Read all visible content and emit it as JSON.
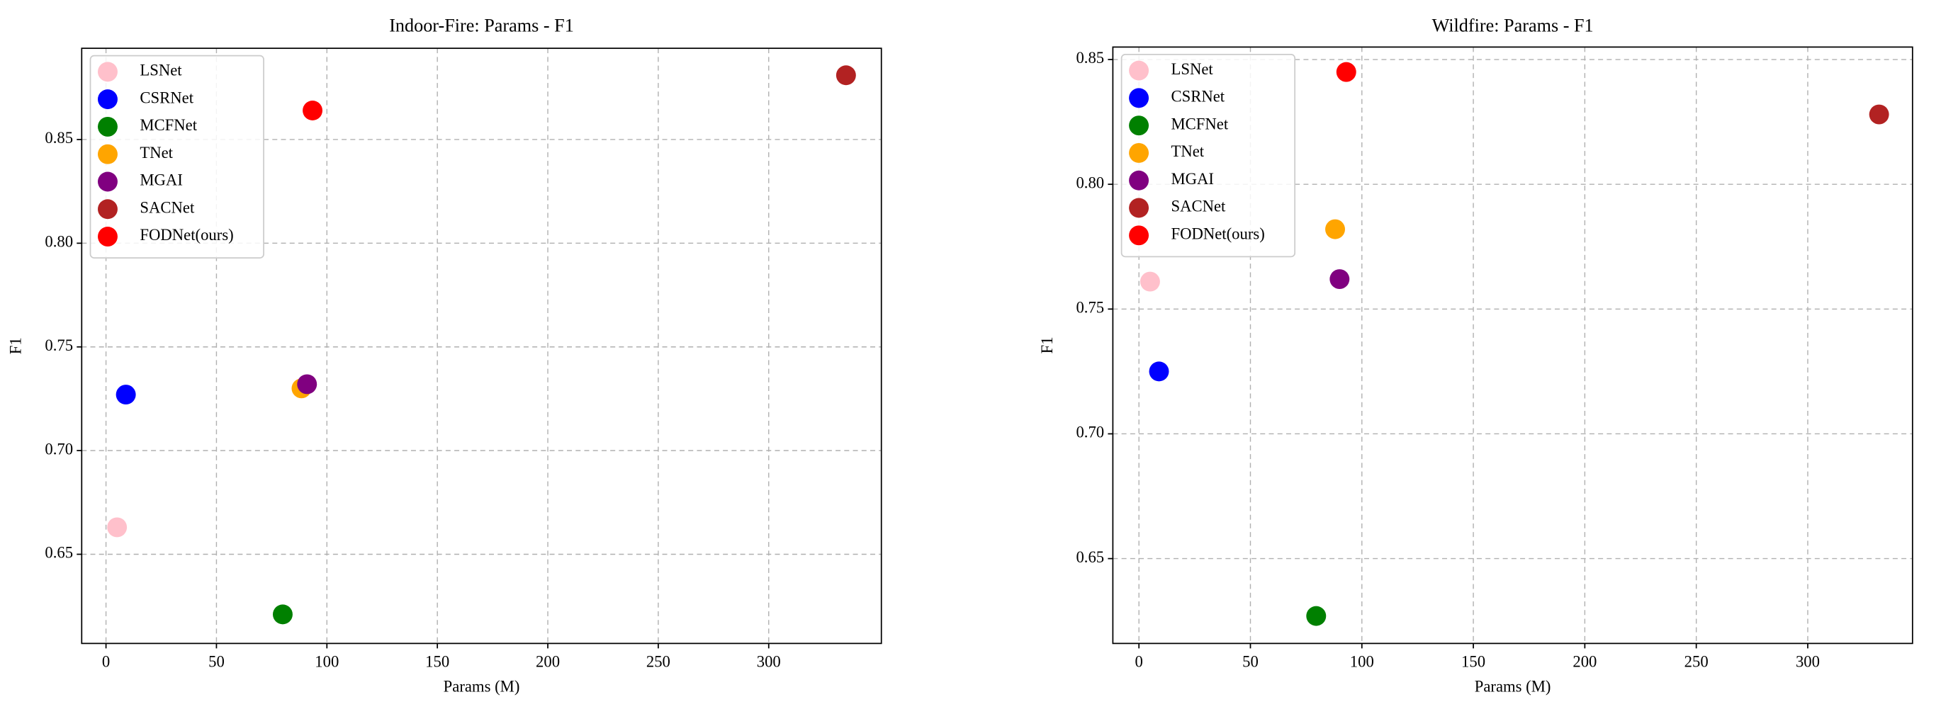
{
  "chart_data": [
    {
      "type": "scatter",
      "title": "Indoor-Fire: Params - F1",
      "x_label": "Params (M)",
      "y_label": "F1",
      "xlim": [
        -11,
        351
      ],
      "ylim": [
        0.607,
        0.894
      ],
      "xticks": [
        0,
        50,
        100,
        150,
        200,
        250,
        300
      ],
      "yticks": [
        0.65,
        {
          "value": 0.7,
          "label": "0.70"
        },
        0.75,
        {
          "value": 0.8,
          "label": "0.80"
        },
        0.85
      ],
      "grid": true,
      "legend": "upper left",
      "series": [
        {
          "name": "LSNet",
          "color": "#ffc0cb",
          "x": [
            5
          ],
          "values": [
            0.663
          ]
        },
        {
          "name": "CSRNet",
          "color": "#0000ff",
          "x": [
            9
          ],
          "values": [
            0.727
          ]
        },
        {
          "name": "MCFNet",
          "color": "#008000",
          "x": [
            80
          ],
          "values": [
            0.621
          ]
        },
        {
          "name": "TNet",
          "color": "#ffa500",
          "x": [
            88.5
          ],
          "values": [
            0.73
          ]
        },
        {
          "name": "MGAI",
          "color": "#800080",
          "x": [
            91
          ],
          "values": [
            0.732
          ]
        },
        {
          "name": "SACNet",
          "color": "#b22222",
          "x": [
            335
          ],
          "values": [
            0.881
          ]
        },
        {
          "name": "FODNet(ours)",
          "color": "#ff0000",
          "x": [
            93.5
          ],
          "values": [
            0.864
          ]
        }
      ]
    },
    {
      "type": "scatter",
      "title": "Wildfire: Params - F1",
      "x_label": "Params (M)",
      "y_label": "F1",
      "xlim": [
        -11.7,
        347
      ],
      "ylim": [
        0.616,
        0.855
      ],
      "xticks": [
        0,
        50,
        100,
        150,
        200,
        250,
        300
      ],
      "yticks": [
        0.65,
        {
          "value": 0.7,
          "label": "0.70"
        },
        0.75,
        {
          "value": 0.8,
          "label": "0.80"
        },
        0.85
      ],
      "grid": true,
      "legend": "upper left",
      "series": [
        {
          "name": "LSNet",
          "color": "#ffc0cb",
          "x": [
            5
          ],
          "values": [
            0.761
          ]
        },
        {
          "name": "CSRNet",
          "color": "#0000ff",
          "x": [
            9
          ],
          "values": [
            0.725
          ]
        },
        {
          "name": "MCFNet",
          "color": "#008000",
          "x": [
            79.5
          ],
          "values": [
            0.627
          ]
        },
        {
          "name": "TNet",
          "color": "#ffa500",
          "x": [
            88
          ],
          "values": [
            0.782
          ]
        },
        {
          "name": "MGAI",
          "color": "#800080",
          "x": [
            90
          ],
          "values": [
            0.762
          ]
        },
        {
          "name": "SACNet",
          "color": "#b22222",
          "x": [
            332
          ],
          "values": [
            0.828
          ]
        },
        {
          "name": "FODNet(ours)",
          "color": "#ff0000",
          "x": [
            93
          ],
          "values": [
            0.845
          ]
        }
      ]
    }
  ]
}
